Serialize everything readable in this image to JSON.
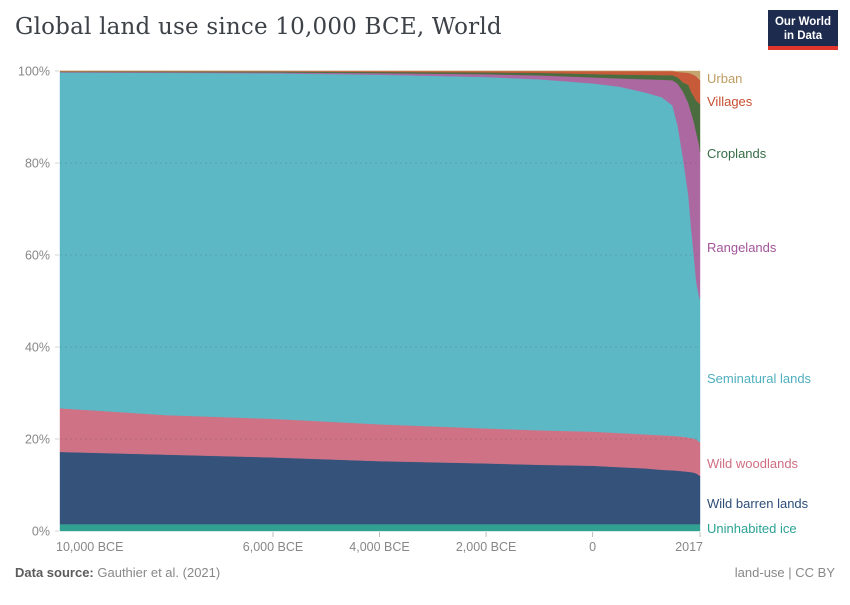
{
  "header": {
    "title": "Global land use since 10,000 BCE, World",
    "logo": {
      "line1": "Our World",
      "line2": "in Data",
      "bg": "#1d2c4e",
      "accent": "#e0362c"
    }
  },
  "footer": {
    "source_label": "Data source:",
    "source_value": "Gauthier et al. (2021)",
    "right_note": "land-use | CC BY"
  },
  "chart_data": {
    "type": "area",
    "stacking": "percent",
    "title": "Global land use since 10,000 BCE, World",
    "xlabel": "",
    "ylabel": "",
    "x_range": [
      -10000,
      2017
    ],
    "ylim": [
      0,
      100
    ],
    "grid_percents": [
      20,
      40,
      60,
      80
    ],
    "axis_text_color": "#878787",
    "y_ticks": [
      {
        "label": "0%",
        "value": 0
      },
      {
        "label": "20%",
        "value": 20
      },
      {
        "label": "40%",
        "value": 40
      },
      {
        "label": "60%",
        "value": 60
      },
      {
        "label": "80%",
        "value": 80
      },
      {
        "label": "100%",
        "value": 100
      }
    ],
    "x_ticks": [
      {
        "label": "10,000 BCE",
        "value": -10000
      },
      {
        "label": "6,000 BCE",
        "value": -6000
      },
      {
        "label": "4,000 BCE",
        "value": -4000
      },
      {
        "label": "2,000 BCE",
        "value": -2000
      },
      {
        "label": "0",
        "value": 0
      },
      {
        "label": "2017",
        "value": 2017
      }
    ],
    "years": [
      -10000,
      -8000,
      -6000,
      -4000,
      -2000,
      -1000,
      0,
      500,
      1000,
      1300,
      1500,
      1600,
      1700,
      1800,
      1850,
      1900,
      1950,
      2000,
      2017
    ],
    "legend_position": "right",
    "series": [
      {
        "name": "Urban",
        "color": "#c4a46f",
        "label_color": "#be9c62",
        "values": [
          0,
          0,
          0,
          0,
          0,
          0,
          0,
          0,
          0,
          0,
          0,
          0.2,
          0.3,
          0.4,
          0.6,
          0.8,
          1.2,
          1.8,
          2.0
        ]
      },
      {
        "name": "Villages",
        "color": "#c65a39",
        "label_color": "#c84e31",
        "values": [
          0.1,
          0.1,
          0.1,
          0.2,
          0.3,
          0.4,
          0.65,
          0.75,
          0.85,
          0.9,
          0.9,
          1.2,
          2.2,
          2.6,
          3.9,
          4.7,
          5.3,
          5.2,
          5.2
        ]
      },
      {
        "name": "Croplands",
        "color": "#4a6c3e",
        "label_color": "#366b46",
        "values": [
          0.1,
          0.15,
          0.2,
          0.25,
          0.4,
          0.55,
          0.75,
          0.85,
          0.95,
          1.0,
          1.1,
          1.4,
          2.0,
          4.0,
          4.5,
          5.5,
          7.0,
          9.0,
          10.3
        ]
      },
      {
        "name": "Rangelands",
        "color": "#ab68a1",
        "label_color": "#a2559b",
        "values": [
          0.1,
          0.15,
          0.2,
          0.35,
          0.6,
          0.85,
          1.3,
          1.8,
          2.9,
          3.8,
          5.5,
          9.2,
          14.5,
          20.0,
          25.0,
          29.0,
          32.5,
          33.0,
          32.0
        ]
      },
      {
        "name": "Seminatural lands",
        "color": "#5bb8c4",
        "label_color": "#4fafbe",
        "values": [
          73.0,
          74.4,
          75.1,
          76.0,
          76.4,
          76.3,
          75.7,
          75.3,
          74.3,
          73.5,
          71.8,
          67.4,
          60.5,
          52.7,
          45.8,
          39.9,
          34.1,
          31.6,
          31.2
        ]
      },
      {
        "name": "Wild woodlands",
        "color": "#cf7285",
        "label_color": "#ce6e80",
        "values": [
          9.5,
          8.6,
          8.4,
          8.0,
          7.6,
          7.5,
          7.4,
          7.4,
          7.4,
          7.5,
          7.5,
          7.5,
          7.5,
          7.4,
          7.4,
          7.4,
          7.4,
          7.3,
          7.3
        ]
      },
      {
        "name": "Wild barren lands",
        "color": "#35527b",
        "label_color": "#2d4e79",
        "values": [
          15.7,
          15.1,
          14.5,
          13.7,
          13.2,
          12.9,
          12.7,
          12.4,
          12.1,
          11.8,
          11.7,
          11.6,
          11.5,
          11.4,
          11.3,
          11.2,
          11.0,
          10.6,
          10.5
        ]
      },
      {
        "name": "Uninhabited ice",
        "color": "#30a092",
        "label_color": "#2ba293",
        "values": [
          1.5,
          1.5,
          1.5,
          1.5,
          1.5,
          1.5,
          1.5,
          1.5,
          1.5,
          1.5,
          1.5,
          1.5,
          1.5,
          1.5,
          1.5,
          1.5,
          1.5,
          1.5,
          1.5
        ]
      }
    ]
  }
}
